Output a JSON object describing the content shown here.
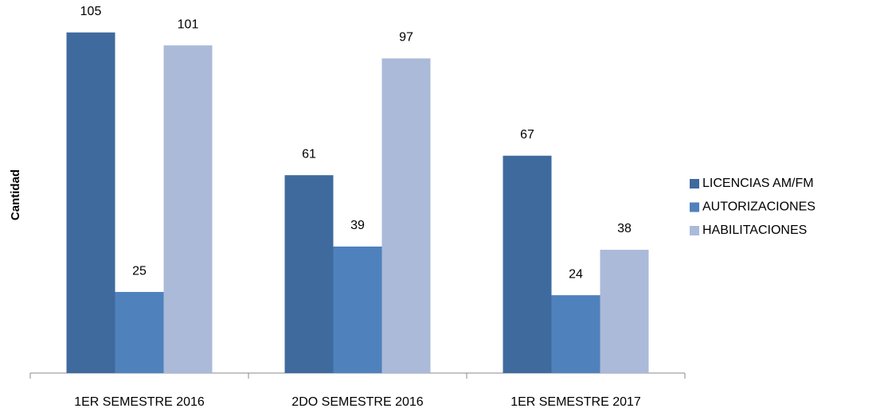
{
  "chart_data": {
    "type": "bar",
    "y_label": "Cantidad",
    "categories": [
      "1ER SEMESTRE 2016",
      "2DO SEMESTRE 2016",
      "1ER SEMESTRE 2017"
    ],
    "series": [
      {
        "name": "LICENCIAS AM/FM",
        "color": "#3f6a9e",
        "values": [
          105,
          61,
          67
        ]
      },
      {
        "name": "AUTORIZACIONES",
        "color": "#4f81bd",
        "values": [
          25,
          39,
          24
        ]
      },
      {
        "name": "HABILITACIONES",
        "color": "#abbad9",
        "values": [
          101,
          97,
          38
        ]
      }
    ],
    "ylim": [
      0,
      115
    ],
    "legend": "right"
  }
}
